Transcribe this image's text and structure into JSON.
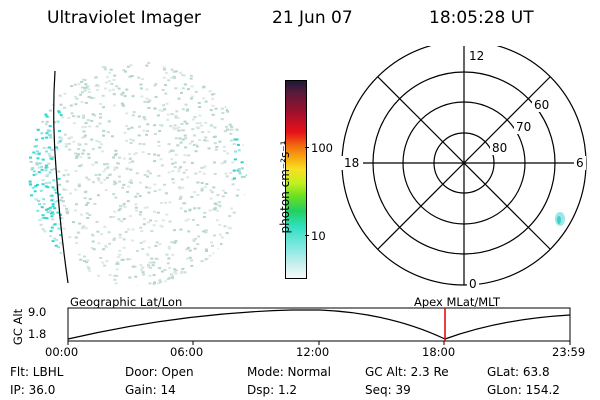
{
  "header": {
    "title": "Ultraviolet Imager",
    "date": "21 Jun 07",
    "time": "18:05:28 UT"
  },
  "colorbar": {
    "unit_label": "photon cm⁻²s⁻¹",
    "tick_labels": [
      "100",
      "10"
    ]
  },
  "polar": {
    "mlt_labels": [
      "12",
      "18",
      "6",
      "0"
    ],
    "lat_labels": [
      "60",
      "70",
      "80"
    ]
  },
  "timeline": {
    "left_caption": "Geographic Lat/Lon",
    "right_caption": "Apex  MLat/MLT",
    "axis_title": "GC Alt",
    "y_ticks": [
      "9.0",
      "1.8"
    ],
    "x_ticks": [
      "00:00",
      "06:00",
      "12:00",
      "18:00",
      "23:59"
    ]
  },
  "status": {
    "row1": [
      {
        "name": "filter",
        "text": "Flt: LBHL"
      },
      {
        "name": "door",
        "text": "Door: Open"
      },
      {
        "name": "mode",
        "text": "Mode: Normal"
      },
      {
        "name": "gc-alt",
        "text": "GC Alt: 2.3 Re"
      },
      {
        "name": "glat",
        "text": "GLat:  63.8"
      }
    ],
    "row2": [
      {
        "name": "ip",
        "text": "IP: 36.0"
      },
      {
        "name": "gain",
        "text": "Gain: 14"
      },
      {
        "name": "dsp",
        "text": "Dsp:    1.2"
      },
      {
        "name": "seq",
        "text": "Seq: 39"
      },
      {
        "name": "glon",
        "text": "GLon: 154.2"
      }
    ]
  }
}
